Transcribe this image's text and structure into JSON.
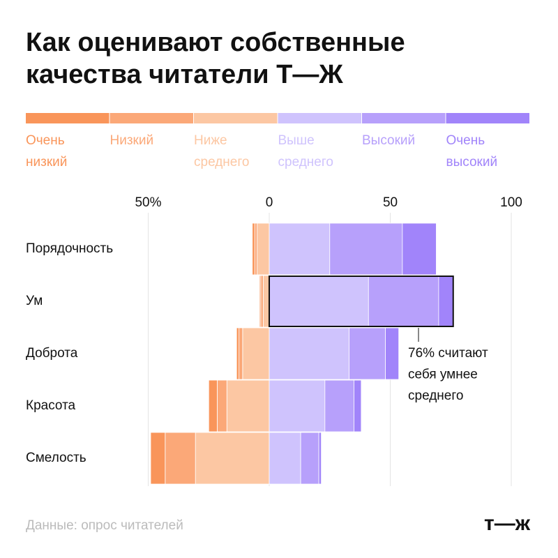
{
  "chart_data": {
    "type": "diverging-bar",
    "title": "Как оценивают собственные качества читатели Т—Ж",
    "categories": [
      "Порядочность",
      "Ум",
      "Доброта",
      "Красота",
      "Смелость"
    ],
    "series": [
      {
        "name": "Очень низкий",
        "color": "#f9955a",
        "values": [
          -1,
          -0.5,
          -1,
          -3.5,
          -6
        ]
      },
      {
        "name": "Низкий",
        "color": "#fba878",
        "values": [
          -1,
          -1,
          -1.5,
          -4,
          -12.5
        ]
      },
      {
        "name": "Ниже среднего",
        "color": "#fcc7a3",
        "values": [
          -5,
          -2.5,
          -11,
          -17.5,
          -30.5
        ]
      },
      {
        "name": "Выше среднего",
        "color": "#cfc3fd",
        "values": [
          25,
          41,
          33,
          23,
          13
        ]
      },
      {
        "name": "Высокий",
        "color": "#b7a0fb",
        "values": [
          30,
          29,
          15,
          12,
          7.5
        ]
      },
      {
        "name": "Очень высокий",
        "color": "#a184fa",
        "values": [
          14,
          6,
          5.5,
          3,
          1
        ]
      }
    ],
    "xlim": [
      -50,
      108
    ],
    "xticks": [
      {
        "value": -50,
        "label": "50%"
      },
      0,
      50,
      100
    ],
    "grid": true,
    "annotation": [
      "76% считают",
      "себя умнее",
      "среднего"
    ],
    "source": "Данные: опрос читателей",
    "logo": "т—ж"
  }
}
